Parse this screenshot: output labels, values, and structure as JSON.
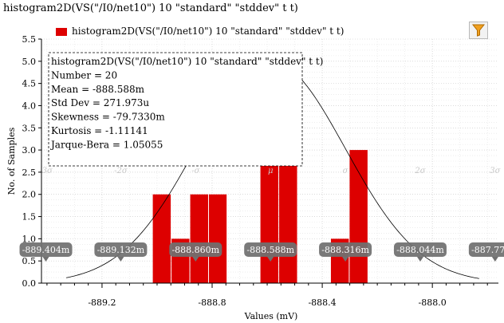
{
  "window_title": "histogram2D(VS(\"/I0/net10\") 10 \"standard\" \"stddev\" t t)",
  "legend": {
    "label": "histogram2D(VS(\"/I0/net10\") 10 \"standard\" \"stddev\" t t)",
    "color": "#dd0000"
  },
  "toolbar": {
    "filter_icon": "funnel-filter-icon"
  },
  "stats": [
    "histogram2D(VS(\"/I0/net10\") 10 \"standard\" \"stddev\" t t)",
    "Number = 20",
    "Mean = -888.588m",
    "Std Dev = 271.973u",
    "Skewness = -79.7330m",
    "Kurtosis = -1.11141",
    "Jarque-Bera = 1.05055"
  ],
  "sigma_labels": [
    "-3σ",
    "-2σ",
    "-σ",
    "μ",
    "σ",
    "2σ",
    "3σ"
  ],
  "markers": [
    "-889.404m",
    "-889.132m",
    "-888.860m",
    "-888.588m",
    "-888.316m",
    "-888.044m",
    "-887.772m"
  ],
  "chart_data": {
    "type": "bar",
    "title": "histogram2D(VS(\"/I0/net10\") 10 \"standard\" \"stddev\" t t)",
    "xlabel": "Values (mV)",
    "ylabel": "No. of Samples",
    "xlim": [
      -889.42,
      -887.76
    ],
    "ylim": [
      0,
      5.5
    ],
    "x_ticks": [
      "-889.2",
      "-888.8",
      "-888.4",
      "-888.0"
    ],
    "y_ticks": [
      "0.0",
      "0.5",
      "1.0",
      "1.5",
      "2.0",
      "2.5",
      "3.0",
      "3.5",
      "4.0",
      "4.5",
      "5.0",
      "5.5"
    ],
    "grid": true,
    "bar_color": "#dd0000",
    "bins": [
      {
        "x0": -889.017,
        "x1": -888.949,
        "count": 2
      },
      {
        "x0": -888.949,
        "x1": -888.881,
        "count": 1
      },
      {
        "x0": -888.881,
        "x1": -888.813,
        "count": 2
      },
      {
        "x0": -888.813,
        "x1": -888.746,
        "count": 2
      },
      {
        "x0": -888.626,
        "x1": -888.558,
        "count": 5
      },
      {
        "x0": -888.558,
        "x1": -888.49,
        "count": 4
      },
      {
        "x0": -888.37,
        "x1": -888.302,
        "count": 1
      },
      {
        "x0": -888.302,
        "x1": -888.234,
        "count": 3
      }
    ],
    "normal_curve": {
      "mean": -888.588,
      "stddev": 0.271973,
      "peak": 5.0
    },
    "sigma_positions": [
      -889.404,
      -889.132,
      -888.86,
      -888.588,
      -888.316,
      -888.044,
      -887.772
    ]
  }
}
